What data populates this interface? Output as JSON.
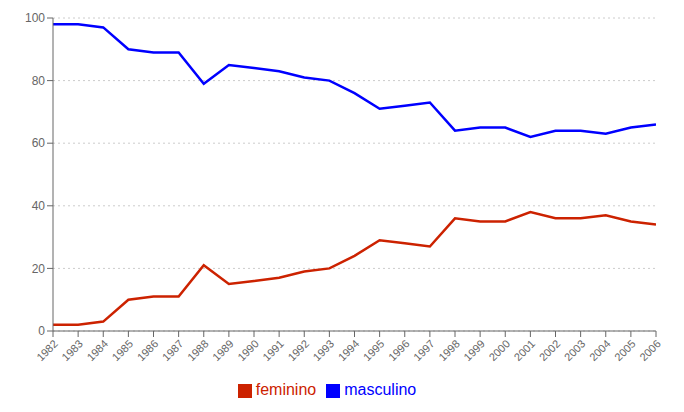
{
  "chart_data": {
    "type": "line",
    "x": [
      1982,
      1983,
      1984,
      1985,
      1986,
      1987,
      1988,
      1989,
      1990,
      1991,
      1992,
      1993,
      1994,
      1995,
      1996,
      1997,
      1998,
      1999,
      2000,
      2001,
      2002,
      2003,
      2004,
      2005,
      2006
    ],
    "series": [
      {
        "name": "masculino",
        "color": "#0000ff",
        "values": [
          98,
          98,
          97,
          90,
          89,
          89,
          79,
          85,
          84,
          83,
          81,
          80,
          76,
          71,
          72,
          73,
          64,
          65,
          65,
          62,
          64,
          64,
          63,
          65,
          66
        ]
      },
      {
        "name": "feminino",
        "color": "#cc2200",
        "values": [
          2,
          2,
          3,
          10,
          11,
          11,
          21,
          15,
          16,
          17,
          19,
          20,
          24,
          29,
          28,
          27,
          36,
          35,
          35,
          38,
          36,
          36,
          37,
          35,
          34
        ]
      }
    ],
    "xlim": [
      1982,
      2006
    ],
    "xticks": [
      1982,
      1983,
      1984,
      1985,
      1986,
      1987,
      1988,
      1989,
      1990,
      1991,
      1992,
      1993,
      1994,
      1995,
      1996,
      1997,
      1998,
      1999,
      2000,
      2001,
      2002,
      2003,
      2004,
      2005,
      2006
    ],
    "ylim": [
      0,
      100
    ],
    "yticks": [
      0,
      20,
      40,
      60,
      80,
      100
    ],
    "grid": true,
    "legend": "bottom"
  }
}
